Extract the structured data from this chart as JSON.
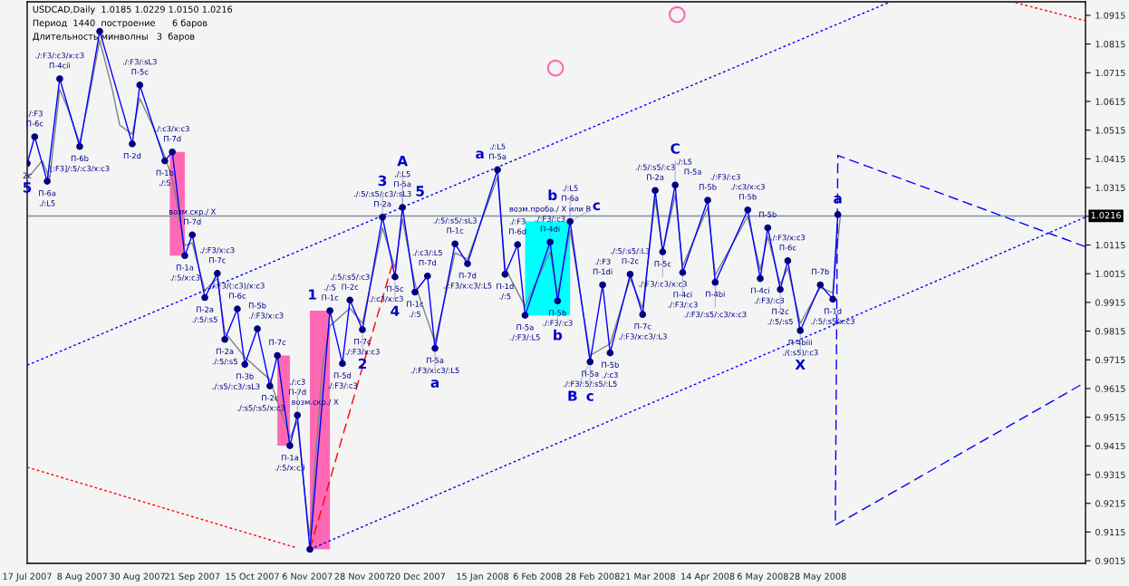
{
  "chart_data": {
    "type": "line",
    "xlim": [
      "2007-07-17",
      "2008-09-12"
    ],
    "ylim": [
      0.9006,
      1.0962
    ],
    "xticks": [
      {
        "value": "2007-07-17",
        "label": "17 Jul 2007"
      },
      {
        "value": "2007-08-08",
        "label": "8 Aug 2007"
      },
      {
        "value": "2007-08-30",
        "label": "30 Aug 2007"
      },
      {
        "value": "2007-09-21",
        "label": "21 Sep 2007"
      },
      {
        "value": "2007-10-15",
        "label": "15 Oct 2007"
      },
      {
        "value": "2007-11-06",
        "label": "6 Nov 2007"
      },
      {
        "value": "2007-11-28",
        "label": "28 Nov 2007"
      },
      {
        "value": "2007-12-20",
        "label": "20 Dec 2007"
      },
      {
        "value": "2008-01-15",
        "label": "15 Jan 2008"
      },
      {
        "value": "2008-02-06",
        "label": "6 Feb 2008"
      },
      {
        "value": "2008-02-28",
        "label": "28 Feb 2008"
      },
      {
        "value": "2008-03-21",
        "label": "21 Mar 2008"
      },
      {
        "value": "2008-04-14",
        "label": "14 Apr 2008"
      },
      {
        "value": "2008-05-06",
        "label": "6 May 2008"
      },
      {
        "value": "2008-05-28",
        "label": "28 May 2008"
      }
    ],
    "yticks": [
      0.9015,
      0.9115,
      0.9215,
      0.9315,
      0.9415,
      0.9515,
      0.9615,
      0.9715,
      0.9815,
      0.9915,
      1.0015,
      1.0115,
      {
        "value": 1.0215,
        "label": null
      },
      1.0315,
      1.0415,
      1.0515,
      1.0615,
      1.0715,
      1.0815,
      1.0915
    ],
    "grid": false,
    "ref_lines": [
      {
        "axis": "y",
        "value": 1.0216,
        "label": "1.0216",
        "color": "#8090a0"
      }
    ],
    "series": [
      {
        "color": "#808080",
        "line_style": "solid",
        "marker": "none",
        "x": [
          "2007-07-17",
          "2007-07-23",
          "2007-07-26",
          "2007-07-30",
          "2007-08-02",
          "2007-08-07",
          "2007-08-10",
          "2007-08-15",
          "2007-08-20",
          "2007-08-23",
          "2007-08-28",
          "2007-08-31",
          "2007-09-05",
          "2007-09-10",
          "2007-09-13",
          "2007-09-18",
          "2007-09-21",
          "2007-09-26",
          "2007-10-01",
          "2007-10-04",
          "2007-10-12",
          "2007-10-22",
          "2007-10-30",
          "2007-11-02",
          "2007-11-06",
          "2007-11-07",
          "2007-11-12",
          "2007-11-15",
          "2007-11-23",
          "2007-11-28",
          "2007-12-06",
          "2007-12-11",
          "2007-12-14",
          "2007-12-19",
          "2007-12-27",
          "2008-01-04",
          "2008-01-09",
          "2008-01-21",
          "2008-01-24",
          "2008-02-01",
          "2008-02-11",
          "2008-02-14",
          "2008-02-19",
          "2008-02-27",
          "2008-03-06",
          "2008-03-14",
          "2008-03-19",
          "2008-03-24",
          "2008-03-27",
          "2008-04-01",
          "2008-04-04",
          "2008-04-14",
          "2008-04-17",
          "2008-04-30",
          "2008-05-05",
          "2008-05-08",
          "2008-05-13",
          "2008-05-16",
          "2008-05-21",
          "2008-05-29",
          "2008-06-03",
          "2008-06-06"
        ],
        "values": [
          1.0346,
          1.0408,
          1.0346,
          1.0657,
          1.0595,
          1.047,
          1.0595,
          1.0828,
          1.0657,
          1.0532,
          1.0501,
          1.0626,
          1.0532,
          1.0424,
          1.0346,
          1.0113,
          1.0122,
          0.9957,
          0.9998,
          0.9811,
          0.9724,
          0.9646,
          0.9444,
          0.95,
          0.9164,
          0.9102,
          0.9693,
          0.9833,
          0.9895,
          0.9842,
          1.0175,
          1.0035,
          1.0206,
          0.9979,
          0.9777,
          1.0088,
          1.0066,
          1.0352,
          1.0035,
          0.9901,
          1.0091,
          0.9942,
          1.0166,
          0.973,
          0.9771,
          0.9998,
          0.9895,
          1.0277,
          1.0091,
          1.029,
          1.0041,
          1.0246,
          1.001,
          1.0215,
          1.0029,
          1.0144,
          0.9979,
          1.0035,
          0.9842,
          0.9967,
          0.9948,
          1.0215
        ]
      },
      {
        "color": "#0000ff",
        "line_style": "solid",
        "marker": "circle",
        "x": [
          "2007-07-17",
          "2007-07-20",
          "2007-07-25",
          "2007-07-30",
          "2007-08-07",
          "2007-08-15",
          "2007-08-28",
          "2007-08-31",
          "2007-09-10",
          "2007-09-13",
          "2007-09-18",
          "2007-09-21",
          "2007-09-26",
          "2007-10-01",
          "2007-10-04",
          "2007-10-09",
          "2007-10-12",
          "2007-10-17",
          "2007-10-22",
          "2007-10-25",
          "2007-10-30",
          "2007-11-02",
          "2007-11-07",
          "2007-11-15",
          "2007-11-20",
          "2007-11-23",
          "2007-11-28",
          "2007-12-06",
          "2007-12-11",
          "2007-12-14",
          "2007-12-19",
          "2007-12-24",
          "2007-12-27",
          "2008-01-04",
          "2008-01-09",
          "2008-01-21",
          "2008-01-24",
          "2008-01-29",
          "2008-02-01",
          "2008-02-11",
          "2008-02-14",
          "2008-02-19",
          "2008-02-27",
          "2008-03-03",
          "2008-03-06",
          "2008-03-14",
          "2008-03-19",
          "2008-03-24",
          "2008-03-27",
          "2008-04-01",
          "2008-04-04",
          "2008-04-14",
          "2008-04-17",
          "2008-04-30",
          "2008-05-05",
          "2008-05-08",
          "2008-05-13",
          "2008-05-16",
          "2008-05-21",
          "2008-05-29",
          "2008-06-03",
          "2008-06-05"
        ],
        "values": [
          1.0399,
          1.0492,
          1.0337,
          1.0694,
          1.0458,
          1.0859,
          1.0467,
          1.0672,
          1.0408,
          1.0439,
          1.0078,
          1.015,
          0.9932,
          1.0016,
          0.9786,
          0.9892,
          0.9699,
          0.9823,
          0.9624,
          0.973,
          0.9416,
          0.9522,
          0.9055,
          0.9886,
          0.9702,
          0.9923,
          0.982,
          1.0212,
          1.0004,
          1.0246,
          0.9951,
          1.0007,
          0.9755,
          1.0119,
          1.005,
          1.0377,
          1.0013,
          1.0116,
          0.987,
          1.0125,
          0.992,
          1.0197,
          0.9708,
          0.9976,
          0.9739,
          1.0013,
          0.9873,
          1.0305,
          1.0091,
          1.0324,
          1.0019,
          1.0271,
          0.9985,
          1.0237,
          0.9998,
          1.0175,
          0.996,
          1.006,
          0.9817,
          0.9976,
          0.9926,
          1.0221
        ]
      },
      {
        "color": "#0000ff",
        "line_style": "dotted",
        "marker": "none",
        "x": [
          "2007-07-17",
          "2008-06-26"
        ],
        "values": [
          0.9696,
          1.0962
        ]
      },
      {
        "color": "#0000ff",
        "line_style": "dotted",
        "marker": "none",
        "x": [
          "2007-11-07",
          "2008-09-12"
        ],
        "values": [
          0.9055,
          1.0212
        ]
      },
      {
        "color": "#ff0000",
        "line_style": "dotted",
        "marker": "none",
        "x": [
          "2007-07-17",
          "2007-11-01"
        ],
        "values": [
          0.9341,
          0.9062
        ]
      },
      {
        "color": "#ff0000",
        "line_style": "dashed",
        "marker": "none",
        "x": [
          "2007-11-07",
          "2007-12-10"
        ],
        "values": [
          0.9055,
          1.005
        ]
      },
      {
        "color": "#ff0000",
        "line_style": "dotted",
        "marker": "none",
        "x": [
          "2008-08-15",
          "2008-09-12"
        ],
        "values": [
          1.0959,
          1.0896
        ]
      },
      {
        "color": "#0000ff",
        "line_style": "dashed",
        "marker": "none",
        "x": [
          "2008-09-12",
          "2008-06-05",
          "2008-06-04",
          "2008-09-12"
        ],
        "values": [
          1.0109,
          1.0427,
          0.9139,
          0.9637
        ]
      }
    ],
    "annotations": [
      "USDCAD,Daily  1.0185 1.0229 1.0150 1.0216",
      "Период  1440  построение      6 баров",
      "Длительность минволны   3  баров",
      {
        "text": "2c",
        "x": "2007-07-17",
        "y": 1.0399
      },
      {
        "text": "5",
        "x": "2007-07-17",
        "y": 1.0399
      },
      {
        "text": "./:F3",
        "x": "2007-07-20",
        "y": 1.0492
      },
      {
        "text": "П-6c",
        "x": "2007-07-20",
        "y": 1.0492
      },
      {
        "text": "П-6a",
        "x": "2007-07-25",
        "y": 1.0337
      },
      {
        "text": "./:L5",
        "x": "2007-07-25",
        "y": 1.0337
      },
      {
        "text": "./:F3/:c3/x:c3",
        "x": "2007-07-30",
        "y": 1.0694
      },
      {
        "text": "П-4cii",
        "x": "2007-07-30",
        "y": 1.0694
      },
      {
        "text": "П-6b",
        "x": "2007-08-07",
        "y": 1.0458
      },
      {
        "text": "[:F3]/:5/:c3/x:c3",
        "x": "2007-08-07",
        "y": 1.0458
      },
      {
        "text": "П-2d",
        "x": "2007-08-28",
        "y": 1.0467
      },
      {
        "text": "./:F3/:sL3",
        "x": "2007-08-31",
        "y": 1.0672
      },
      {
        "text": "П-5c",
        "x": "2007-08-31",
        "y": 1.0672
      },
      {
        "text": "П-1b",
        "x": "2007-09-10",
        "y": 1.0408
      },
      {
        "text": "./:5",
        "x": "2007-09-10",
        "y": 1.0408
      },
      {
        "text": "./:c3/x:c3",
        "x": "2007-09-13",
        "y": 1.0439
      },
      {
        "text": "П-7d",
        "x": "2007-09-13",
        "y": 1.0439
      },
      {
        "text": "П-1a",
        "x": "2007-09-18",
        "y": 1.0078
      },
      {
        "text": "./:5/x:c3",
        "x": "2007-09-18",
        "y": 1.0078
      },
      {
        "text": "возм.скр./ X",
        "x": "2007-09-21",
        "y": 1.015
      },
      {
        "text": "П-7d",
        "x": "2007-09-21",
        "y": 1.015
      },
      {
        "text": "П-2a",
        "x": "2007-09-26",
        "y": 0.9932
      },
      {
        "text": "./:5/:s5",
        "x": "2007-09-26",
        "y": 0.9932
      },
      {
        "text": "./:F3/x:c3",
        "x": "2007-10-01",
        "y": 1.0016
      },
      {
        "text": "П-7c",
        "x": "2007-10-01",
        "y": 1.0016
      },
      {
        "text": "П-2a",
        "x": "2007-10-04",
        "y": 0.9786
      },
      {
        "text": "./:5/:s5",
        "x": "2007-10-04",
        "y": 0.9786
      },
      {
        "text": "./:F3/(:c3)/x:c3",
        "x": "2007-10-09",
        "y": 0.9892
      },
      {
        "text": "П-6c",
        "x": "2007-10-09",
        "y": 0.9892
      },
      {
        "text": "П-3b",
        "x": "2007-10-12",
        "y": 0.9699
      },
      {
        "text": "./:s5/:c3/:sL3",
        "x": "2007-10-12",
        "y": 0.9699
      },
      {
        "text": "П-5b",
        "x": "2007-10-17",
        "y": 0.9823
      },
      {
        "text": "./:F3/x:c3",
        "x": "2007-10-17",
        "y": 0.9823
      },
      {
        "text": "П-2c",
        "x": "2007-10-22",
        "y": 0.9624
      },
      {
        "text": "./:s5/:s5/x:c3",
        "x": "2007-10-22",
        "y": 0.9624
      },
      {
        "text": "П-7c",
        "x": "2007-10-25",
        "y": 0.973
      },
      {
        "text": "П-1a",
        "x": "2007-10-30",
        "y": 0.9416
      },
      {
        "text": "./:5/x:c3",
        "x": "2007-10-30",
        "y": 0.9416
      },
      {
        "text": "./:c3",
        "x": "2007-11-02",
        "y": 0.9522
      },
      {
        "text": "П-7d",
        "x": "2007-11-02",
        "y": 0.9522
      },
      {
        "text": "возм.скр./ X",
        "x": "2007-11-02",
        "y": 0.9522
      },
      {
        "text": "1",
        "x": "2007-11-15",
        "y": 0.9886
      },
      {
        "text": "./:5",
        "x": "2007-11-15",
        "y": 0.9886
      },
      {
        "text": "П-1c",
        "x": "2007-11-15",
        "y": 0.9886
      },
      {
        "text": "П-5d",
        "x": "2007-11-20",
        "y": 0.9702
      },
      {
        "text": "./:F3/:c3",
        "x": "2007-11-20",
        "y": 0.9702
      },
      {
        "text": "./:5/:s5/:c3",
        "x": "2007-11-23",
        "y": 0.9923
      },
      {
        "text": "П-2c",
        "x": "2007-11-23",
        "y": 0.9923
      },
      {
        "text": "П-7c",
        "x": "2007-11-28",
        "y": 0.982
      },
      {
        "text": "./:F3/x:c3",
        "x": "2007-11-28",
        "y": 0.982
      },
      {
        "text": "2",
        "x": "2007-11-28",
        "y": 0.982
      },
      {
        "text": "./:5/:s5/:c3/:sL3",
        "x": "2007-12-06",
        "y": 1.0212
      },
      {
        "text": "П-2a",
        "x": "2007-12-06",
        "y": 1.0212
      },
      {
        "text": "3",
        "x": "2007-12-06",
        "y": 1.0212
      },
      {
        "text": "4",
        "x": "2007-12-11",
        "y": 1.0004
      },
      {
        "text": "П-5c",
        "x": "2007-12-11",
        "y": 1.0004
      },
      {
        "text": "./:c3/x:c3",
        "x": "2007-12-11",
        "y": 1.0004
      },
      {
        "text": "A",
        "x": "2007-12-14",
        "y": 1.0246
      },
      {
        "text": "5",
        "x": "2007-12-14",
        "y": 1.0246
      },
      {
        "text": "./:L5",
        "x": "2007-12-14",
        "y": 1.0246
      },
      {
        "text": "П-5a",
        "x": "2007-12-14",
        "y": 1.0246
      },
      {
        "text": "П-1c",
        "x": "2007-12-19",
        "y": 0.9951
      },
      {
        "text": "./:5",
        "x": "2007-12-19",
        "y": 0.9951
      },
      {
        "text": "./:c3/:L5",
        "x": "2007-12-24",
        "y": 1.0007
      },
      {
        "text": "П-7d",
        "x": "2007-12-24",
        "y": 1.0007
      },
      {
        "text": "П-5a",
        "x": "2007-12-27",
        "y": 0.9755
      },
      {
        "text": "./:F3/x:c3/:L5",
        "x": "2007-12-27",
        "y": 0.9755
      },
      {
        "text": "a",
        "x": "2007-12-27",
        "y": 0.9755
      },
      {
        "text": "./:5/:s5/:sL3",
        "x": "2008-01-04",
        "y": 1.0119
      },
      {
        "text": "П-1c",
        "x": "2008-01-04",
        "y": 1.0119
      },
      {
        "text": "П-7d",
        "x": "2008-01-09",
        "y": 1.005
      },
      {
        "text": "./:F3/x:c3/:L5",
        "x": "2008-01-09",
        "y": 1.005
      },
      {
        "text": "a",
        "x": "2008-01-21",
        "y": 1.0377
      },
      {
        "text": "./:L5",
        "x": "2008-01-21",
        "y": 1.0377
      },
      {
        "text": "П-5a",
        "x": "2008-01-21",
        "y": 1.0377
      },
      {
        "text": "П-1d",
        "x": "2008-01-24",
        "y": 1.0013
      },
      {
        "text": "./:5",
        "x": "2008-01-24",
        "y": 1.0013
      },
      {
        "text": "./:F3",
        "x": "2008-01-29",
        "y": 1.0116
      },
      {
        "text": "П-6d",
        "x": "2008-01-29",
        "y": 1.0116
      },
      {
        "text": "П-5a",
        "x": "2008-02-01",
        "y": 0.987
      },
      {
        "text": "./:F3/:L5",
        "x": "2008-02-01",
        "y": 0.987
      },
      {
        "text": "возм.проба./ X или B",
        "x": "2008-02-11",
        "y": 1.0125
      },
      {
        "text": "./:F3/:c3",
        "x": "2008-02-11",
        "y": 1.0125
      },
      {
        "text": "П-4di",
        "x": "2008-02-11",
        "y": 1.0125
      },
      {
        "text": "П-5b",
        "x": "2008-02-14",
        "y": 0.992
      },
      {
        "text": "./:F3/:c3",
        "x": "2008-02-14",
        "y": 0.992
      },
      {
        "text": "b",
        "x": "2008-02-14",
        "y": 0.992
      },
      {
        "text": "b",
        "x": "2008-02-19",
        "y": 1.0197
      },
      {
        "text": "c",
        "x": "2008-02-19",
        "y": 1.0197
      },
      {
        "text": "./:L5",
        "x": "2008-02-19",
        "y": 1.0197
      },
      {
        "text": "П-6a",
        "x": "2008-02-19",
        "y": 1.0197
      },
      {
        "text": "П-5a",
        "x": "2008-02-27",
        "y": 0.9708
      },
      {
        "text": "./:F3/:5/:s5/:L5",
        "x": "2008-02-27",
        "y": 0.9708
      },
      {
        "text": "c",
        "x": "2008-02-27",
        "y": 0.9708
      },
      {
        "text": "B",
        "x": "2008-02-27",
        "y": 0.9708
      },
      {
        "text": "./:F3",
        "x": "2008-03-03",
        "y": 0.9976
      },
      {
        "text": "П-1di",
        "x": "2008-03-03",
        "y": 0.9976
      },
      {
        "text": "П-5b",
        "x": "2008-03-06",
        "y": 0.9739
      },
      {
        "text": "./:c3",
        "x": "2008-03-06",
        "y": 0.9739
      },
      {
        "text": "./:5/:s5/:L3",
        "x": "2008-03-14",
        "y": 1.0013
      },
      {
        "text": "П-2c",
        "x": "2008-03-14",
        "y": 1.0013
      },
      {
        "text": "П-7c",
        "x": "2008-03-19",
        "y": 0.9873
      },
      {
        "text": "./:F3/x:c3/:L3",
        "x": "2008-03-19",
        "y": 0.9873
      },
      {
        "text": "./:5/:s5/:c3",
        "x": "2008-03-24",
        "y": 1.0305
      },
      {
        "text": "П-2a",
        "x": "2008-03-24",
        "y": 1.0305
      },
      {
        "text": "П-5c",
        "x": "2008-03-27",
        "y": 1.0091
      },
      {
        "text": "./:F3/:c3/x:c3",
        "x": "2008-03-27",
        "y": 1.0091
      },
      {
        "text": "C",
        "x": "2008-04-01",
        "y": 1.0324
      },
      {
        "text": "./:L5",
        "x": "2008-04-01",
        "y": 1.0324
      },
      {
        "text": "П-5a",
        "x": "2008-04-01",
        "y": 1.0324
      },
      {
        "text": "П-4ci",
        "x": "2008-04-04",
        "y": 1.0019
      },
      {
        "text": "./:F3/:c3",
        "x": "2008-04-04",
        "y": 1.0019
      },
      {
        "text": "./:F3/:c3",
        "x": "2008-04-14",
        "y": 1.0271
      },
      {
        "text": "П-5b",
        "x": "2008-04-14",
        "y": 1.0271
      },
      {
        "text": "П-4bi",
        "x": "2008-04-17",
        "y": 0.9985
      },
      {
        "text": "./:F3/:s5/:c3/x:c3",
        "x": "2008-04-17",
        "y": 0.9985
      },
      {
        "text": "./:c3/x:c3",
        "x": "2008-04-30",
        "y": 1.0237
      },
      {
        "text": "П-5b",
        "x": "2008-04-30",
        "y": 1.0237
      },
      {
        "text": "П-4ci",
        "x": "2008-05-05",
        "y": 0.9998
      },
      {
        "text": "./:F3/:c3",
        "x": "2008-05-05",
        "y": 0.9998
      },
      {
        "text": "П-5b",
        "x": "2008-05-08",
        "y": 1.0175
      },
      {
        "text": "П-2c",
        "x": "2008-05-13",
        "y": 0.996
      },
      {
        "text": "./:5/:s5",
        "x": "2008-05-13",
        "y": 0.996
      },
      {
        "text": "./:F3/x:c3",
        "x": "2008-05-16",
        "y": 1.006
      },
      {
        "text": "П-6c",
        "x": "2008-05-16",
        "y": 1.006
      },
      {
        "text": "П-4biii",
        "x": "2008-05-21",
        "y": 0.9817
      },
      {
        "text": "./(:s5)/:c3",
        "x": "2008-05-21",
        "y": 0.9817
      },
      {
        "text": "X",
        "x": "2008-05-21",
        "y": 0.9817
      },
      {
        "text": "П-7b",
        "x": "2008-05-29",
        "y": 0.9976
      },
      {
        "text": "П-1d",
        "x": "2008-06-03",
        "y": 0.9926
      },
      {
        "text": "./:5/:s5/x:c3",
        "x": "2008-06-03",
        "y": 0.9926
      },
      {
        "text": "a",
        "x": "2008-06-05",
        "y": 1.0221
      }
    ]
  }
}
